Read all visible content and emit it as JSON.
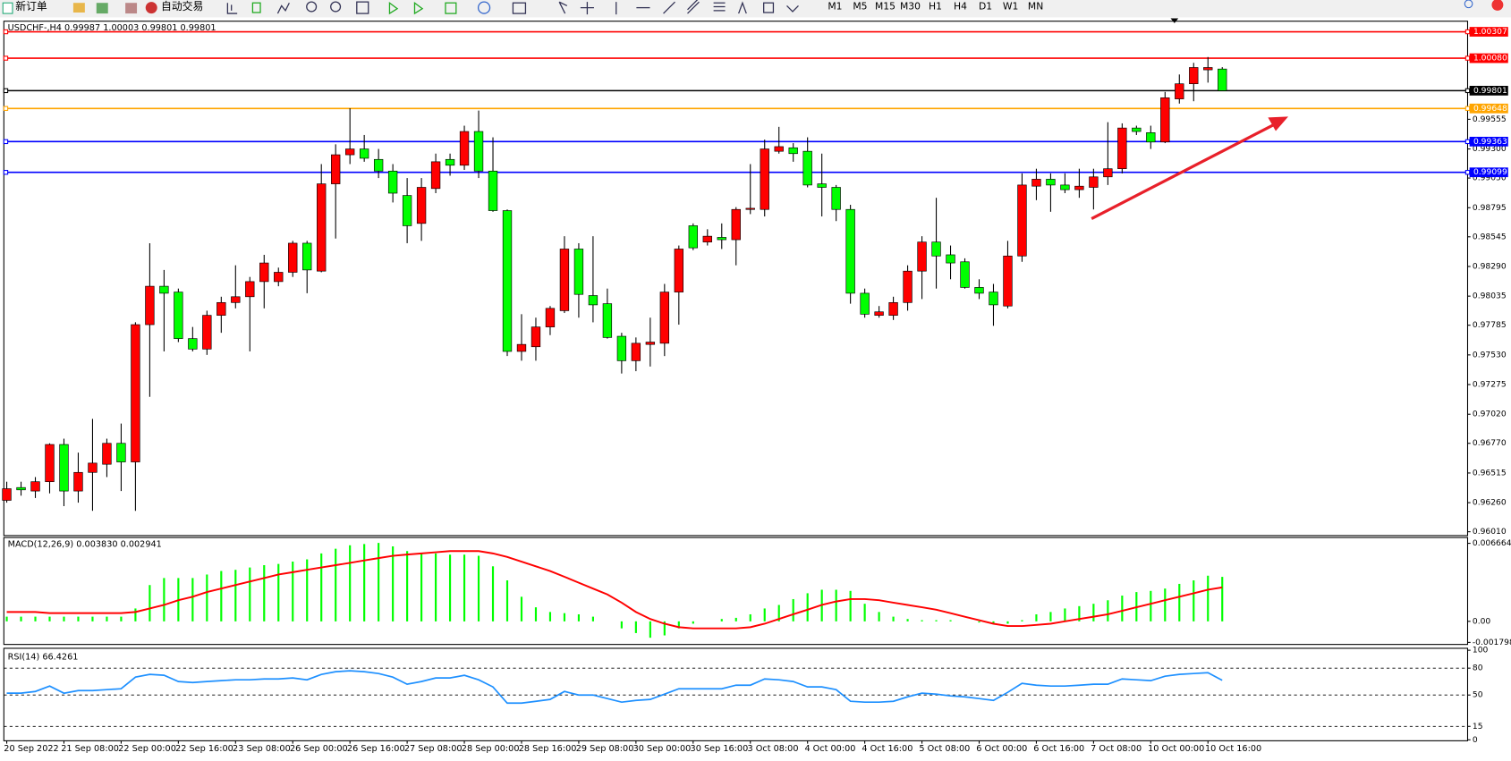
{
  "toolbar": {
    "new_order": "新订单",
    "auto_trading": "自动交易",
    "timeframes": [
      "M1",
      "M5",
      "M15",
      "M30",
      "H1",
      "H4",
      "D1",
      "W1",
      "MN"
    ]
  },
  "chart_data": [
    {
      "type": "candlestick",
      "title": "USDCHF-,H4 0.99987 1.00003 0.99801 0.99801",
      "categories": [
        "20 Sep 2022",
        null,
        null,
        null,
        "21 Sep 08:00",
        null,
        null,
        null,
        "22 Sep 00:00",
        null,
        null,
        null,
        "22 Sep 16:00",
        null,
        null,
        null,
        "23 Sep 08:00",
        null,
        null,
        null,
        "26 Sep 00:00",
        null,
        null,
        null,
        "26 Sep 16:00",
        null,
        null,
        null,
        "27 Sep 08:00",
        null,
        null,
        null,
        "28 Sep 00:00",
        null,
        null,
        null,
        "28 Sep 16:00",
        null,
        null,
        null,
        "29 Sep 08:00",
        null,
        null,
        null,
        "30 Sep 00:00",
        null,
        null,
        null,
        "30 Sep 16:00",
        null,
        null,
        null,
        "3 Oct 08:00",
        null,
        null,
        null,
        "4 Oct 00:00",
        null,
        null,
        null,
        "4 Oct 16:00",
        null,
        null,
        null,
        "5 Oct 08:00",
        null,
        null,
        null,
        "6 Oct 00:00",
        null,
        null,
        null,
        "6 Oct 16:00",
        null,
        null,
        null,
        "7 Oct 08:00",
        null,
        null,
        null,
        "10 Oct 00:00",
        null,
        null,
        null,
        "10 Oct 16:00",
        null
      ],
      "open": [
        0.9628,
        0.9639,
        0.9636,
        0.9644,
        0.9676,
        0.9636,
        0.9652,
        0.9659,
        0.9677,
        0.9661,
        0.9779,
        0.9812,
        0.9807,
        0.9767,
        0.9758,
        0.9787,
        0.9798,
        0.9803,
        0.9816,
        0.9816,
        0.9824,
        0.9849,
        0.9825,
        0.99,
        0.9925,
        0.993,
        0.9921,
        0.9911,
        0.989,
        0.9866,
        0.9896,
        0.9921,
        0.9916,
        0.9945,
        0.9911,
        0.9877,
        0.9756,
        0.976,
        0.9777,
        0.9791,
        0.9844,
        0.9804,
        0.9797,
        0.9769,
        0.9748,
        0.9762,
        0.9763,
        0.9807,
        0.9864,
        0.985,
        0.9854,
        0.9852,
        0.9878,
        0.9878,
        0.9928,
        0.9931,
        0.9928,
        0.99,
        0.9897,
        0.9878,
        0.9806,
        0.9787,
        0.9787,
        0.9798,
        0.9825,
        0.985,
        0.9839,
        0.9833,
        0.9811,
        0.9807,
        0.9795,
        0.9838,
        0.9898,
        0.9904,
        0.9899,
        0.9895,
        0.9897,
        0.9906,
        0.9913,
        0.9948,
        0.9944,
        0.9936,
        0.9973,
        0.9986,
        0.9998,
        0.99987
      ],
      "high": [
        0.9644,
        0.9644,
        0.9648,
        0.9677,
        0.9681,
        0.9669,
        0.9698,
        0.9681,
        0.9694,
        0.9781,
        0.9849,
        0.9826,
        0.981,
        0.9777,
        0.9791,
        0.9803,
        0.983,
        0.982,
        0.9839,
        0.9828,
        0.9851,
        0.9851,
        0.9917,
        0.9934,
        0.9965,
        0.9942,
        0.993,
        0.9917,
        0.9905,
        0.9905,
        0.9926,
        0.9926,
        0.995,
        0.9963,
        0.994,
        0.9878,
        0.9788,
        0.9785,
        0.9795,
        0.9855,
        0.9849,
        0.9855,
        0.981,
        0.9772,
        0.9768,
        0.9785,
        0.9814,
        0.9847,
        0.9866,
        0.9861,
        0.9866,
        0.988,
        0.9917,
        0.9938,
        0.9949,
        0.9935,
        0.994,
        0.9926,
        0.9899,
        0.9882,
        0.981,
        0.9795,
        0.9803,
        0.983,
        0.9855,
        0.9888,
        0.9847,
        0.9836,
        0.9818,
        0.9814,
        0.9851,
        0.9909,
        0.9913,
        0.9909,
        0.9909,
        0.9913,
        0.9913,
        0.9953,
        0.9952,
        0.995,
        0.995,
        0.9979,
        0.9994,
        1.0004,
        1.0009,
        1.00003
      ],
      "low": [
        0.9626,
        0.9632,
        0.963,
        0.9634,
        0.9623,
        0.9626,
        0.9619,
        0.9648,
        0.9636,
        0.9619,
        0.9717,
        0.9756,
        0.9764,
        0.9756,
        0.9753,
        0.9772,
        0.9793,
        0.9756,
        0.9793,
        0.9812,
        0.982,
        0.9806,
        0.9824,
        0.9853,
        0.9917,
        0.9919,
        0.9905,
        0.9884,
        0.9849,
        0.9851,
        0.9892,
        0.9907,
        0.9912,
        0.9905,
        0.9876,
        0.9752,
        0.9748,
        0.9748,
        0.977,
        0.9789,
        0.9785,
        0.9781,
        0.9767,
        0.9737,
        0.9739,
        0.9743,
        0.9752,
        0.9779,
        0.9843,
        0.9847,
        0.9844,
        0.983,
        0.9874,
        0.9872,
        0.9926,
        0.9919,
        0.9897,
        0.9872,
        0.9868,
        0.9797,
        0.9785,
        0.9785,
        0.9783,
        0.9791,
        0.9801,
        0.981,
        0.9818,
        0.981,
        0.9801,
        0.9778,
        0.9793,
        0.9833,
        0.9886,
        0.9876,
        0.9892,
        0.9888,
        0.9878,
        0.9899,
        0.9909,
        0.9942,
        0.993,
        0.9935,
        0.9969,
        0.9971,
        0.9987,
        0.99801
      ],
      "close": [
        0.9638,
        0.9637,
        0.9644,
        0.9676,
        0.9636,
        0.9652,
        0.966,
        0.9677,
        0.9661,
        0.9779,
        0.9812,
        0.9806,
        0.9767,
        0.9758,
        0.9787,
        0.9798,
        0.9803,
        0.9816,
        0.9832,
        0.9824,
        0.9849,
        0.9826,
        0.99,
        0.9925,
        0.993,
        0.9922,
        0.9911,
        0.9892,
        0.9864,
        0.9897,
        0.9919,
        0.9916,
        0.9945,
        0.9911,
        0.9877,
        0.9756,
        0.9762,
        0.9777,
        0.9793,
        0.9844,
        0.9805,
        0.9796,
        0.9768,
        0.9748,
        0.9763,
        0.9764,
        0.9807,
        0.9844,
        0.9845,
        0.9855,
        0.9852,
        0.9878,
        0.9879,
        0.993,
        0.9932,
        0.9926,
        0.9899,
        0.9897,
        0.9878,
        0.9806,
        0.9788,
        0.979,
        0.9798,
        0.9825,
        0.985,
        0.9838,
        0.9832,
        0.9811,
        0.9806,
        0.9796,
        0.9838,
        0.9899,
        0.9904,
        0.9899,
        0.9895,
        0.9898,
        0.9906,
        0.9913,
        0.9948,
        0.9945,
        0.9936,
        0.9974,
        0.9986,
        1,
        1,
        0.99801
      ],
      "up_color": "#ff0000",
      "down_color": "#00ff00",
      "ylim": [
        0.95977,
        1.00398
      ],
      "yticks": [
        0.99555,
        {
          "value": 0.993,
          "label": "0.99300"
        },
        {
          "value": 0.9905,
          "label": "0.99050"
        },
        0.98795,
        0.98545,
        {
          "value": 0.9829,
          "label": "0.98290"
        },
        0.98035,
        0.97785,
        {
          "value": 0.9753,
          "label": "0.97530"
        },
        0.97275,
        {
          "value": 0.9702,
          "label": "0.97020"
        },
        {
          "value": 0.9677,
          "label": "0.96770"
        },
        0.96515,
        {
          "value": 0.9626,
          "label": "0.96260"
        },
        {
          "value": 0.9601,
          "label": "0.96010"
        }
      ],
      "levels": [
        {
          "value": 1.00307,
          "color": "#ff0000"
        },
        {
          "value": 1.0008,
          "label": "1.00080",
          "color": "#ff0000"
        },
        {
          "value": 0.99801,
          "color": "#000000"
        },
        {
          "value": 0.99648,
          "color": "#ffa500"
        },
        {
          "value": 0.99363,
          "color": "#0000ff"
        },
        {
          "value": 0.99099,
          "color": "#0000ff"
        }
      ]
    },
    {
      "type": "macd",
      "title": "MACD(12,26,9) 0.003830 0.002941",
      "histogram": [
        0.0004,
        0.0004,
        0.0004,
        0.0004,
        0.0004,
        0.0004,
        0.0004,
        0.0004,
        0.0004,
        0.0011,
        0.0031,
        0.0037,
        0.0037,
        0.0037,
        0.004,
        0.0043,
        0.0044,
        0.0046,
        0.0048,
        0.0049,
        0.0051,
        0.0053,
        0.0058,
        0.0062,
        0.0065,
        0.0066,
        0.0067,
        0.0064,
        0.006,
        0.0058,
        0.0058,
        0.0057,
        0.0057,
        0.0056,
        0.0047,
        0.0035,
        0.0021,
        0.0012,
        0.0008,
        0.0007,
        0.0006,
        0.0004,
        0,
        -0.0006,
        -0.001,
        -0.0014,
        -0.0012,
        -0.0006,
        -0.0002,
        0,
        0.0002,
        0.0003,
        0.0006,
        0.0011,
        0.0014,
        0.0019,
        0.0024,
        0.0027,
        0.0027,
        0.0026,
        0.0015,
        0.0008,
        0.0004,
        0.0002,
        0.0001,
        0.0001,
        0.0001,
        0,
        -0.0001,
        -0.0002,
        -0.0002,
        0.0001,
        0.0006,
        0.0008,
        0.0011,
        0.0013,
        0.0015,
        0.0018,
        0.0022,
        0.0025,
        0.0026,
        0.0028,
        0.0032,
        0.0035,
        0.0039,
        0.0038
      ],
      "signal": [
        0.0008,
        0.0008,
        0.0008,
        0.0007,
        0.0007,
        0.0007,
        0.0007,
        0.0007,
        0.0007,
        0.0008,
        0.0011,
        0.0014,
        0.0018,
        0.0021,
        0.0025,
        0.0028,
        0.0031,
        0.0034,
        0.0037,
        0.004,
        0.0042,
        0.0044,
        0.0046,
        0.0048,
        0.005,
        0.0052,
        0.0054,
        0.0056,
        0.0057,
        0.0058,
        0.0059,
        0.006,
        0.006,
        0.006,
        0.0058,
        0.0055,
        0.0051,
        0.0047,
        0.0043,
        0.0038,
        0.0033,
        0.0028,
        0.0023,
        0.0016,
        0.0008,
        0.0002,
        -0.0002,
        -0.0005,
        -0.0006,
        -0.0006,
        -0.0006,
        -0.0006,
        -0.0005,
        -0.0002,
        0.0002,
        0.0006,
        0.001,
        0.0014,
        0.0017,
        0.0019,
        0.0019,
        0.0018,
        0.0016,
        0.0014,
        0.0012,
        0.001,
        0.0007,
        0.0004,
        0.0001,
        -0.0002,
        -0.0004,
        -0.0004,
        -0.0003,
        -0.0002,
        0,
        0.0002,
        0.0004,
        0.0006,
        0.0009,
        0.0012,
        0.0015,
        0.0018,
        0.0021,
        0.0024,
        0.0027,
        0.0029
      ],
      "histogram_color": "#00ff00",
      "signal_color": "#ff0000",
      "ylim": [
        -0.00189,
        0.00716
      ],
      "yticks": [
        0.006664,
        {
          "value": 0,
          "label": "0.00"
        },
        -0.001798
      ]
    },
    {
      "type": "line",
      "title": "RSI(14) 66.4261",
      "values": [
        52,
        52,
        54,
        60,
        52,
        55,
        55,
        56,
        57,
        70,
        73,
        72,
        65,
        64,
        65,
        66,
        67,
        67,
        68,
        68,
        69,
        67,
        73,
        76,
        77,
        76,
        74,
        70,
        62,
        65,
        69,
        69,
        72,
        67,
        59,
        41,
        41,
        43,
        45,
        54,
        50,
        50,
        46,
        42,
        44,
        45,
        51,
        57,
        57,
        57,
        57,
        61,
        61,
        68,
        67,
        65,
        59,
        59,
        56,
        43,
        42,
        42,
        43,
        48,
        52,
        51,
        49,
        48,
        46,
        44,
        53,
        63,
        61,
        60,
        60,
        61,
        62,
        62,
        68,
        67,
        66,
        71,
        73,
        74,
        75,
        66.4261
      ],
      "color": "#1e90ff",
      "ylim": [
        0,
        100
      ],
      "yticks": [
        100,
        80,
        50,
        15,
        0
      ],
      "levels": [
        80,
        50,
        15
      ]
    }
  ]
}
